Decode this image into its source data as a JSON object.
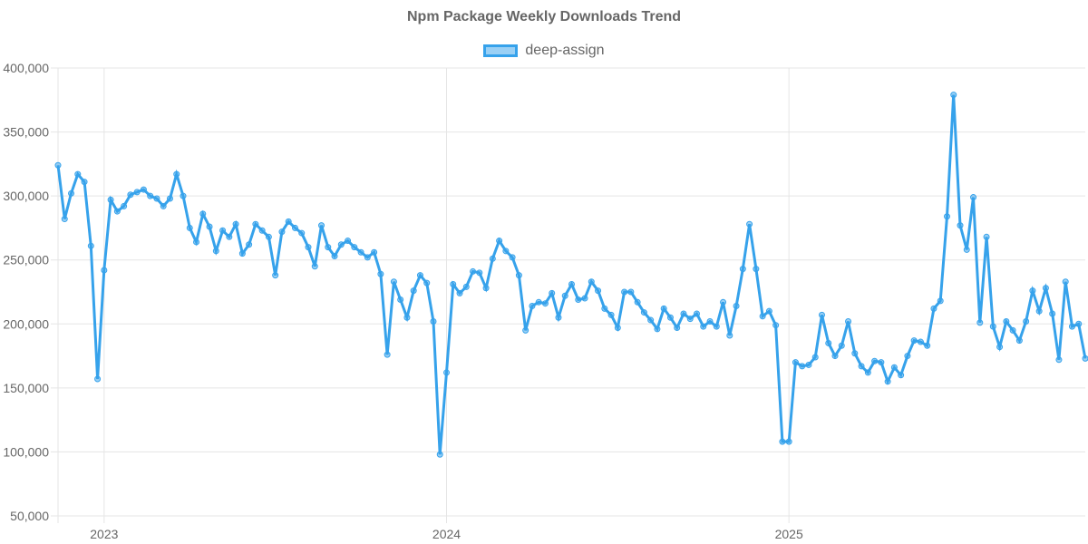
{
  "chart_data": {
    "type": "line",
    "title": "Npm Package Weekly Downloads Trend",
    "xlabel": "",
    "ylabel": "",
    "ylim": [
      50000,
      400000
    ],
    "yticks": [
      "50,000",
      "100,000",
      "150,000",
      "200,000",
      "250,000",
      "300,000",
      "350,000",
      "400,000"
    ],
    "xticks": [
      {
        "label": "2023",
        "index": 7
      },
      {
        "label": "2024",
        "index": 59
      },
      {
        "label": "2025",
        "index": 111
      }
    ],
    "grid": true,
    "legend_position": "top",
    "series": [
      {
        "name": "deep-assign",
        "color": "#36A2EB",
        "values": [
          324000,
          282000,
          302000,
          317000,
          311000,
          261000,
          157000,
          242000,
          297000,
          288000,
          292000,
          301000,
          303000,
          305000,
          300000,
          298000,
          292000,
          298000,
          317000,
          300000,
          275000,
          264000,
          286000,
          276000,
          257000,
          273000,
          268000,
          278000,
          255000,
          262000,
          278000,
          273000,
          268000,
          238000,
          272000,
          280000,
          275000,
          271000,
          260000,
          245000,
          277000,
          260000,
          253000,
          262000,
          265000,
          260000,
          256000,
          252000,
          256000,
          239000,
          176000,
          233000,
          219000,
          205000,
          226000,
          238000,
          232000,
          202000,
          98000,
          162000,
          231000,
          224000,
          229000,
          241000,
          240000,
          228000,
          251000,
          265000,
          257000,
          252000,
          238000,
          195000,
          214000,
          217000,
          216000,
          224000,
          205000,
          222000,
          231000,
          219000,
          220000,
          233000,
          226000,
          212000,
          207000,
          197000,
          225000,
          225000,
          217000,
          209000,
          203000,
          196000,
          212000,
          205000,
          197000,
          208000,
          204000,
          208000,
          198000,
          202000,
          198000,
          217000,
          191000,
          214000,
          243000,
          278000,
          243000,
          206000,
          210000,
          199000,
          108000,
          108000,
          170000,
          167000,
          168000,
          174000,
          207000,
          185000,
          175000,
          183000,
          202000,
          177000,
          167000,
          162000,
          171000,
          170000,
          155000,
          166000,
          160000,
          175000,
          187000,
          186000,
          183000,
          212000,
          218000,
          284000,
          379000,
          277000,
          258000,
          299000,
          201000,
          268000,
          198000,
          182000,
          202000,
          195000,
          187000,
          202000,
          226000,
          210000,
          228000,
          208000,
          172000,
          233000,
          198000,
          200000,
          173000
        ]
      }
    ]
  },
  "legend": {
    "label": "deep-assign"
  }
}
